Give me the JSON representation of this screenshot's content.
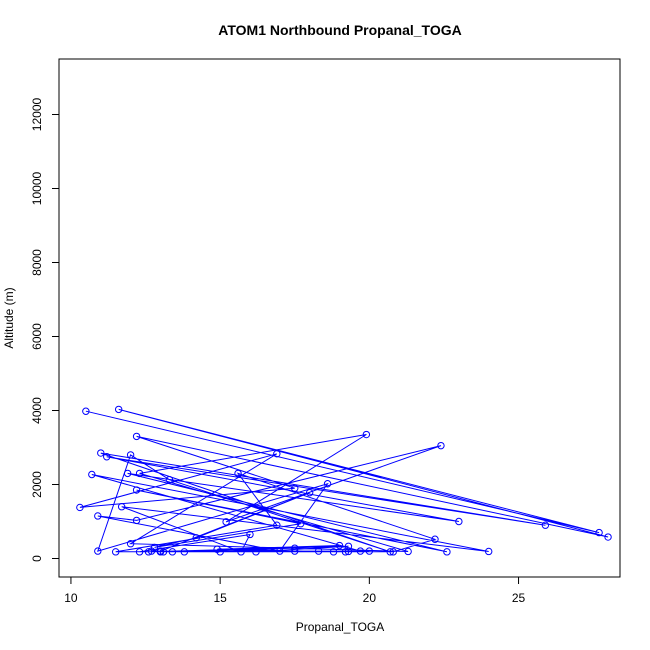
{
  "chart_data": {
    "type": "line",
    "title": "ATOM1 Northbound Propanal_TOGA",
    "xlabel": "Propanal_TOGA",
    "ylabel": "Altitude (m)",
    "xlim": [
      9.6,
      28.4
    ],
    "ylim": [
      -500,
      13500
    ],
    "x_ticks": [
      10,
      15,
      20,
      25
    ],
    "y_ticks": [
      0,
      2000,
      4000,
      6000,
      8000,
      10000,
      12000
    ],
    "grid": false,
    "legend": "none",
    "colors": {
      "series": "#0000ff",
      "axis": "#000000",
      "background": "#ffffff"
    },
    "markers": "open-circle",
    "series": [
      {
        "points": [
          [
            10.5,
            3980
          ],
          [
            27.7,
            700
          ],
          [
            11.6,
            4030
          ],
          [
            28.0,
            580
          ],
          [
            12.2,
            3300
          ],
          [
            17.5,
            1900
          ],
          [
            10.3,
            1380
          ],
          [
            16.9,
            2830
          ],
          [
            12.0,
            400
          ],
          [
            21.3,
            190
          ],
          [
            12.3,
            2300
          ],
          [
            19.9,
            3350
          ],
          [
            15.2,
            990
          ],
          [
            22.4,
            3050
          ],
          [
            12.2,
            1030
          ],
          [
            10.9,
            1150
          ],
          [
            17.0,
            200
          ],
          [
            18.6,
            2020
          ],
          [
            10.9,
            200
          ],
          [
            12.0,
            2800
          ],
          [
            13.3,
            2130
          ],
          [
            20.7,
            180
          ],
          [
            11.0,
            2850
          ],
          [
            25.9,
            900
          ],
          [
            11.2,
            2750
          ],
          [
            23.0,
            1000
          ],
          [
            11.9,
            2300
          ],
          [
            22.6,
            180
          ],
          [
            12.2,
            1850
          ],
          [
            17.7,
            940
          ],
          [
            12.8,
            300
          ],
          [
            14.2,
            560
          ],
          [
            18.0,
            1780
          ],
          [
            13.0,
            200
          ],
          [
            19.7,
            200
          ],
          [
            10.7,
            2270
          ],
          [
            24.0,
            190
          ],
          [
            11.7,
            1400
          ],
          [
            15.7,
            180
          ],
          [
            16.0,
            650
          ],
          [
            12.3,
            180
          ],
          [
            20.0,
            200
          ],
          [
            12.6,
            180
          ],
          [
            19.3,
            330
          ],
          [
            16.2,
            180
          ],
          [
            12.7,
            200
          ],
          [
            17.5,
            200
          ],
          [
            13.1,
            180
          ],
          [
            17.5,
            280
          ],
          [
            13.4,
            180
          ],
          [
            18.3,
            200
          ],
          [
            13.8,
            180
          ],
          [
            18.8,
            180
          ],
          [
            14.9,
            250
          ],
          [
            19.0,
            350
          ],
          [
            15.0,
            180
          ],
          [
            19.2,
            180
          ],
          [
            13.0,
            180
          ],
          [
            20.8,
            180
          ],
          [
            22.2,
            520
          ],
          [
            15.6,
            2300
          ],
          [
            16.9,
            900
          ],
          [
            11.5,
            180
          ],
          [
            19.3,
            190
          ]
        ]
      }
    ]
  }
}
